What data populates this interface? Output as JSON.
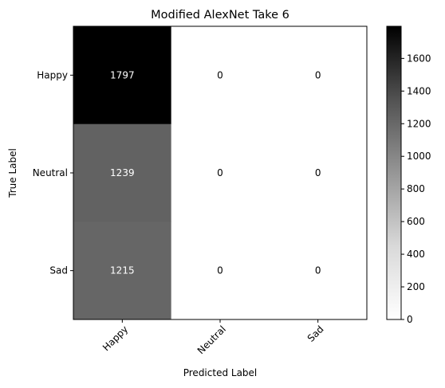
{
  "chart_data": {
    "type": "heatmap",
    "title": "Modified AlexNet Take 6",
    "xlabel": "Predicted Label",
    "ylabel": "True Label",
    "x_categories": [
      "Happy",
      "Neutral",
      "Sad"
    ],
    "y_categories": [
      "Happy",
      "Neutral",
      "Sad"
    ],
    "values": [
      [
        1797,
        0,
        0
      ],
      [
        1239,
        0,
        0
      ],
      [
        1215,
        0,
        0
      ]
    ],
    "colormap": "Greys",
    "colorbar": {
      "min": 0,
      "max": 1797,
      "ticks": [
        0,
        200,
        400,
        600,
        800,
        1000,
        1200,
        1400,
        1600
      ]
    },
    "annotation_threshold": 898.5,
    "annotation_colors": {
      "light": "#ffffff",
      "dark": "#000000"
    }
  }
}
